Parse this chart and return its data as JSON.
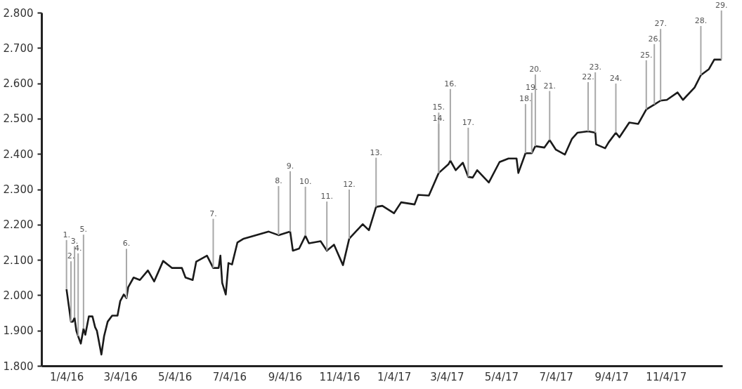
{
  "chart_data": {
    "type": "line",
    "x": [
      "2016-01-04",
      "2016-01-09",
      "2016-01-11",
      "2016-01-13",
      "2016-01-15",
      "2016-01-17",
      "2016-01-20",
      "2016-01-23",
      "2016-01-25",
      "2016-01-29",
      "2016-02-02",
      "2016-02-05",
      "2016-02-07",
      "2016-02-12",
      "2016-02-15",
      "2016-02-19",
      "2016-02-24",
      "2016-03-01",
      "2016-03-04",
      "2016-03-08",
      "2016-03-11",
      "2016-03-13",
      "2016-03-19",
      "2016-03-26",
      "2016-04-04",
      "2016-04-11",
      "2016-04-21",
      "2016-05-01",
      "2016-05-12",
      "2016-05-16",
      "2016-05-24",
      "2016-05-28",
      "2016-06-09",
      "2016-06-16",
      "2016-06-22",
      "2016-06-24",
      "2016-06-26",
      "2016-06-30",
      "2016-07-03",
      "2016-07-07",
      "2016-07-13",
      "2016-07-20",
      "2016-07-31",
      "2016-08-17",
      "2016-08-28",
      "2016-09-10",
      "2016-09-13",
      "2016-09-20",
      "2016-09-27",
      "2016-10-01",
      "2016-10-14",
      "2016-10-21",
      "2016-10-29",
      "2016-11-08",
      "2016-11-15",
      "2016-11-30",
      "2016-12-07",
      "2016-12-15",
      "2016-12-22",
      "2017-01-04",
      "2017-01-12",
      "2017-01-27",
      "2017-01-31",
      "2017-02-12",
      "2017-02-23",
      "2017-03-06",
      "2017-03-08",
      "2017-03-14",
      "2017-03-22",
      "2017-03-28",
      "2017-04-02",
      "2017-04-07",
      "2017-04-20",
      "2017-05-02",
      "2017-05-12",
      "2017-05-21",
      "2017-05-23",
      "2017-05-31",
      "2017-06-07",
      "2017-06-11",
      "2017-06-21",
      "2017-06-27",
      "2017-07-04",
      "2017-07-14",
      "2017-07-22",
      "2017-07-28",
      "2017-08-09",
      "2017-08-17",
      "2017-08-18",
      "2017-08-28",
      "2017-09-01",
      "2017-09-09",
      "2017-09-13",
      "2017-09-24",
      "2017-10-04",
      "2017-10-13",
      "2017-10-22",
      "2017-10-29",
      "2017-11-05",
      "2017-11-17",
      "2017-11-23",
      "2017-12-06",
      "2017-12-13",
      "2017-12-22",
      "2017-12-28",
      "2018-01-05"
    ],
    "series": [
      {
        "color": "#1a1a1a",
        "values": [
          2017,
          1925,
          1925,
          1936,
          1899,
          1884,
          1863,
          1905,
          1888,
          1940,
          1940,
          1909,
          1899,
          1832,
          1884,
          1925,
          1942,
          1942,
          1983,
          2002,
          1992,
          2023,
          2050,
          2043,
          2070,
          2039,
          2097,
          2077,
          2077,
          2050,
          2043,
          2095,
          2112,
          2077,
          2077,
          2112,
          2035,
          2002,
          2091,
          2087,
          2149,
          2160,
          2168,
          2180,
          2170,
          2180,
          2126,
          2132,
          2168,
          2147,
          2153,
          2126,
          2143,
          2085,
          2160,
          2201,
          2184,
          2250,
          2253,
          2232,
          2263,
          2257,
          2284,
          2282,
          2346,
          2371,
          2381,
          2354,
          2375,
          2335,
          2333,
          2354,
          2319,
          2377,
          2387,
          2387,
          2346,
          2402,
          2402,
          2422,
          2418,
          2439,
          2412,
          2398,
          2443,
          2460,
          2464,
          2460,
          2427,
          2416,
          2433,
          2460,
          2447,
          2489,
          2485,
          2526,
          2540,
          2551,
          2553,
          2574,
          2553,
          2588,
          2623,
          2640,
          2667,
          2667
        ]
      }
    ],
    "xlim": [
      "2015-12-07",
      "2018-01-06"
    ],
    "xticks": [
      {
        "value": "2016-01-04",
        "label": "1/4/16"
      },
      {
        "value": "2016-03-04",
        "label": "3/4/16"
      },
      {
        "value": "2016-05-04",
        "label": "5/4/16"
      },
      {
        "value": "2016-07-04",
        "label": "7/4/16"
      },
      {
        "value": "2016-09-04",
        "label": "9/4/16"
      },
      {
        "value": "2016-11-04",
        "label": "11/4/16"
      },
      {
        "value": "2017-01-04",
        "label": "1/4/17"
      },
      {
        "value": "2017-03-04",
        "label": "3/4/17"
      },
      {
        "value": "2017-05-04",
        "label": "5/4/17"
      },
      {
        "value": "2017-07-04",
        "label": "7/4/17"
      },
      {
        "value": "2017-09-04",
        "label": "9/4/17"
      },
      {
        "value": "2017-11-04",
        "label": "11/4/17"
      }
    ],
    "ylim": [
      1800,
      2800
    ],
    "yticks": [
      {
        "value": 1800,
        "label": "1.800"
      },
      {
        "value": 1900,
        "label": "1.900"
      },
      {
        "value": 2000,
        "label": "2.000"
      },
      {
        "value": 2100,
        "label": "2.100"
      },
      {
        "value": 2200,
        "label": "2.200"
      },
      {
        "value": 2300,
        "label": "2.300"
      },
      {
        "value": 2400,
        "label": "2.400"
      },
      {
        "value": 2500,
        "label": "2.500"
      },
      {
        "value": 2600,
        "label": "2.600"
      },
      {
        "value": 2700,
        "label": "2.700"
      },
      {
        "value": 2800,
        "label": "2.800"
      }
    ],
    "annotations": [
      {
        "text": "1.",
        "x": "2016-01-04",
        "y": 2017
      },
      {
        "text": "2.",
        "x": "2016-01-09",
        "y": 1925
      },
      {
        "text": "3.",
        "x": "2016-01-13",
        "y": 1936
      },
      {
        "text": "4.",
        "x": "2016-01-17",
        "y": 1884
      },
      {
        "text": "5.",
        "x": "2016-01-23",
        "y": 1905
      },
      {
        "text": "6.",
        "x": "2016-03-11",
        "y": 1992
      },
      {
        "text": "7.",
        "x": "2016-06-16",
        "y": 2077
      },
      {
        "text": "8.",
        "x": "2016-08-28",
        "y": 2170
      },
      {
        "text": "9.",
        "x": "2016-09-10",
        "y": 2180
      },
      {
        "text": "10.",
        "x": "2016-09-27",
        "y": 2168
      },
      {
        "text": "11.",
        "x": "2016-10-21",
        "y": 2126
      },
      {
        "text": "12.",
        "x": "2016-11-15",
        "y": 2160
      },
      {
        "text": "13.",
        "x": "2016-12-15",
        "y": 2250
      },
      {
        "text": "14.",
        "x": "2017-02-23",
        "y": 2346
      },
      {
        "text": "15.",
        "x": "2017-02-23",
        "y": 2346
      },
      {
        "text": "16.",
        "x": "2017-03-08",
        "y": 2381
      },
      {
        "text": "17.",
        "x": "2017-03-28",
        "y": 2335
      },
      {
        "text": "18.",
        "x": "2017-05-31",
        "y": 2402
      },
      {
        "text": "19.",
        "x": "2017-06-07",
        "y": 2402
      },
      {
        "text": "20.",
        "x": "2017-06-11",
        "y": 2422
      },
      {
        "text": "21.",
        "x": "2017-06-27",
        "y": 2439
      },
      {
        "text": "22.",
        "x": "2017-08-09",
        "y": 2464
      },
      {
        "text": "23.",
        "x": "2017-08-17",
        "y": 2460
      },
      {
        "text": "24.",
        "x": "2017-09-09",
        "y": 2460
      },
      {
        "text": "25.",
        "x": "2017-10-13",
        "y": 2526
      },
      {
        "text": "26.",
        "x": "2017-10-22",
        "y": 2540
      },
      {
        "text": "27.",
        "x": "2017-10-29",
        "y": 2551
      },
      {
        "text": "28.",
        "x": "2017-12-13",
        "y": 2623
      },
      {
        "text": "29.",
        "x": "2018-01-05",
        "y": 2667
      }
    ]
  }
}
